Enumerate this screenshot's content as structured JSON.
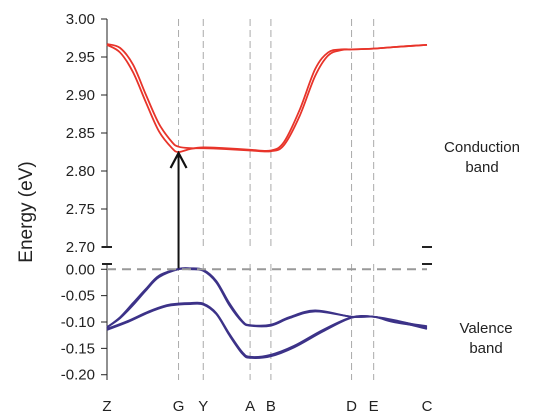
{
  "chart_data": {
    "type": "line",
    "ylabel": "Energy (eV)",
    "k_points": [
      "Z",
      "G",
      "Y",
      "A",
      "B",
      "D",
      "E",
      "C"
    ],
    "k_positions": [
      0,
      2.75,
      3.7,
      5.5,
      6.3,
      9.4,
      10.25,
      12.3
    ],
    "conduction_panel": {
      "ylim": [
        2.7,
        3.0
      ],
      "yticks": [
        "2.70",
        "2.75",
        "2.80",
        "2.85",
        "2.90",
        "2.95",
        "3.00"
      ],
      "side_label": [
        "Conduction",
        "band"
      ],
      "colors": {
        "line": "#e8342a"
      },
      "series": [
        {
          "x": [
            0,
            0.5,
            1.0,
            1.5,
            2.0,
            2.5,
            2.75,
            3.2,
            3.7,
            4.5,
            5.5,
            6.3,
            6.8,
            7.4,
            8.0,
            8.5,
            9.0,
            9.4,
            10.25,
            11.0,
            12.3
          ],
          "y": [
            2.967,
            2.962,
            2.94,
            2.9,
            2.862,
            2.838,
            2.832,
            2.83,
            2.83,
            2.829,
            2.827,
            2.826,
            2.834,
            2.872,
            2.925,
            2.952,
            2.959,
            2.96,
            2.961,
            2.963,
            2.966
          ]
        },
        {
          "x": [
            0,
            0.5,
            1.0,
            1.5,
            2.0,
            2.5,
            2.75,
            3.2,
            3.7,
            4.5,
            5.5,
            6.3,
            6.8,
            7.4,
            8.0,
            8.5,
            9.0,
            9.4,
            10.25,
            11.0,
            12.3
          ],
          "y": [
            2.966,
            2.956,
            2.93,
            2.89,
            2.852,
            2.83,
            2.825,
            2.829,
            2.831,
            2.83,
            2.828,
            2.827,
            2.838,
            2.88,
            2.934,
            2.956,
            2.96,
            2.96,
            2.961,
            2.963,
            2.966
          ]
        }
      ]
    },
    "valence_panel": {
      "ylim": [
        -0.21,
        0.01
      ],
      "yticks": [
        "0.00",
        "-0.05",
        "-0.10",
        "-0.15",
        "-0.20"
      ],
      "side_label": [
        "Valence",
        "band"
      ],
      "colors": {
        "line": "#3c3288"
      },
      "series": [
        {
          "x": [
            0,
            0.5,
            1.0,
            1.5,
            2.0,
            2.75,
            3.2,
            3.7,
            4.2,
            4.7,
            5.2,
            5.5,
            6.3,
            7.0,
            8.0,
            9.4,
            10.25,
            11.0,
            12.3
          ],
          "y": [
            -0.11,
            -0.093,
            -0.068,
            -0.04,
            -0.015,
            0.0,
            0.0,
            -0.003,
            -0.025,
            -0.068,
            -0.1,
            -0.107,
            -0.107,
            -0.093,
            -0.08,
            -0.09,
            -0.09,
            -0.1,
            -0.11
          ]
        },
        {
          "x": [
            0,
            0.5,
            1.0,
            1.5,
            2.0,
            2.75,
            3.2,
            3.7,
            4.2,
            4.7,
            5.2,
            5.5,
            6.3,
            7.0,
            8.0,
            9.4,
            10.25,
            11.0,
            12.3
          ],
          "y": [
            -0.11,
            -0.091,
            -0.064,
            -0.037,
            -0.012,
            0.001,
            0.002,
            -0.001,
            -0.022,
            -0.064,
            -0.098,
            -0.106,
            -0.105,
            -0.091,
            -0.078,
            -0.09,
            -0.09,
            -0.098,
            -0.108
          ]
        },
        {
          "x": [
            0,
            0.8,
            1.6,
            2.3,
            2.75,
            3.2,
            3.7,
            4.2,
            4.7,
            5.2,
            5.5,
            6.3,
            7.2,
            8.3,
            9.4,
            10.25,
            11.2,
            12.3
          ],
          "y": [
            -0.115,
            -0.1,
            -0.082,
            -0.07,
            -0.067,
            -0.066,
            -0.067,
            -0.085,
            -0.125,
            -0.16,
            -0.168,
            -0.165,
            -0.148,
            -0.118,
            -0.092,
            -0.09,
            -0.1,
            -0.113
          ]
        },
        {
          "x": [
            0,
            0.8,
            1.6,
            2.3,
            2.75,
            3.2,
            3.7,
            4.2,
            4.7,
            5.2,
            5.5,
            6.3,
            7.2,
            8.3,
            9.4,
            10.25,
            11.2,
            12.3
          ],
          "y": [
            -0.113,
            -0.098,
            -0.08,
            -0.068,
            -0.065,
            -0.064,
            -0.065,
            -0.083,
            -0.122,
            -0.157,
            -0.166,
            -0.162,
            -0.145,
            -0.115,
            -0.091,
            -0.09,
            -0.098,
            -0.111
          ]
        }
      ]
    },
    "annotations": {
      "arrow_from": {
        "x": 2.75,
        "y": 0.0
      },
      "arrow_to": {
        "x": 2.75,
        "y": 2.825
      },
      "vbm_reference_value": 0.0
    },
    "colors": {
      "guide": "#aaaaaa",
      "axis": "#222222",
      "arrow": "#111111"
    }
  }
}
